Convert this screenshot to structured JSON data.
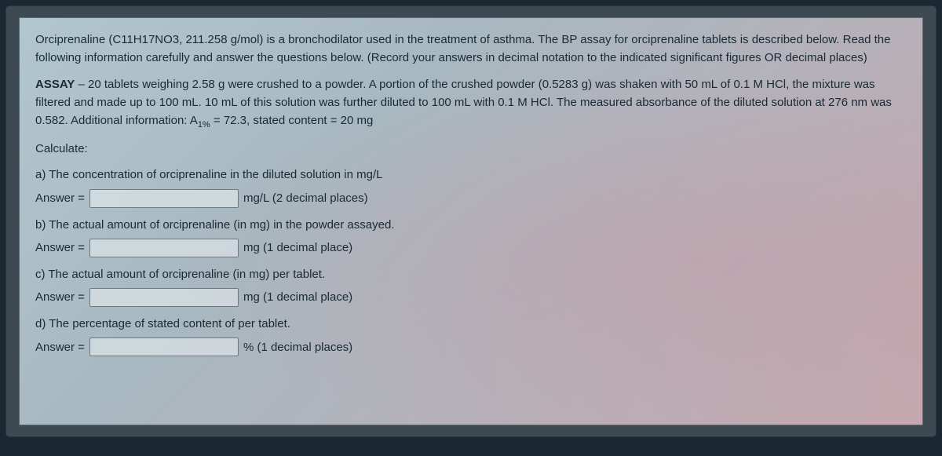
{
  "intro": "Orciprenaline (C11H17NO3, 211.258 g/mol) is a bronchodilator used in the treatment of asthma. The BP assay for orciprenaline tablets is described below. Read the following information carefully and answer the questions below. (Record your answers in decimal notation to the indicated significant figures OR decimal places)",
  "assay_label": "ASSAY",
  "assay_text_before_sub": " – 20 tablets weighing 2.58 g were crushed to a powder. A portion of the crushed powder (0.5283 g) was shaken with 50 mL of 0.1 M HCl, the mixture was filtered and made up to 100 mL. 10 mL of this solution was further diluted to 100 mL with 0.1 M HCl. The measured absorbance of the diluted solution at 276 nm was 0.582. Additional information: A",
  "assay_sub": "1%",
  "assay_text_after_sub": " = 72.3, stated content = 20 mg",
  "calculate": "Calculate:",
  "answer_label": "Answer =",
  "parts": {
    "a": {
      "q": "a) The concentration of orciprenaline in the diluted solution in mg/L",
      "unit": "mg/L (2 decimal places)",
      "value": ""
    },
    "b": {
      "q": "b) The actual amount of orciprenaline (in mg) in the powder assayed.",
      "unit": "mg (1 decimal place)",
      "value": ""
    },
    "c": {
      "q": "c) The actual amount of orciprenaline (in mg) per tablet.",
      "unit": "mg (1 decimal place)",
      "value": ""
    },
    "d": {
      "q": "d) The percentage of stated content of per tablet.",
      "unit": "% (1 decimal places)",
      "value": ""
    }
  },
  "colors": {
    "frame_bg": "#3d4a52",
    "panel_gradient_start": "#b2c6cf",
    "panel_gradient_end": "#c5a8b0",
    "text": "#1a2a34",
    "input_border": "#6a7a82",
    "input_bg": "rgba(235,240,243,0.55)"
  }
}
